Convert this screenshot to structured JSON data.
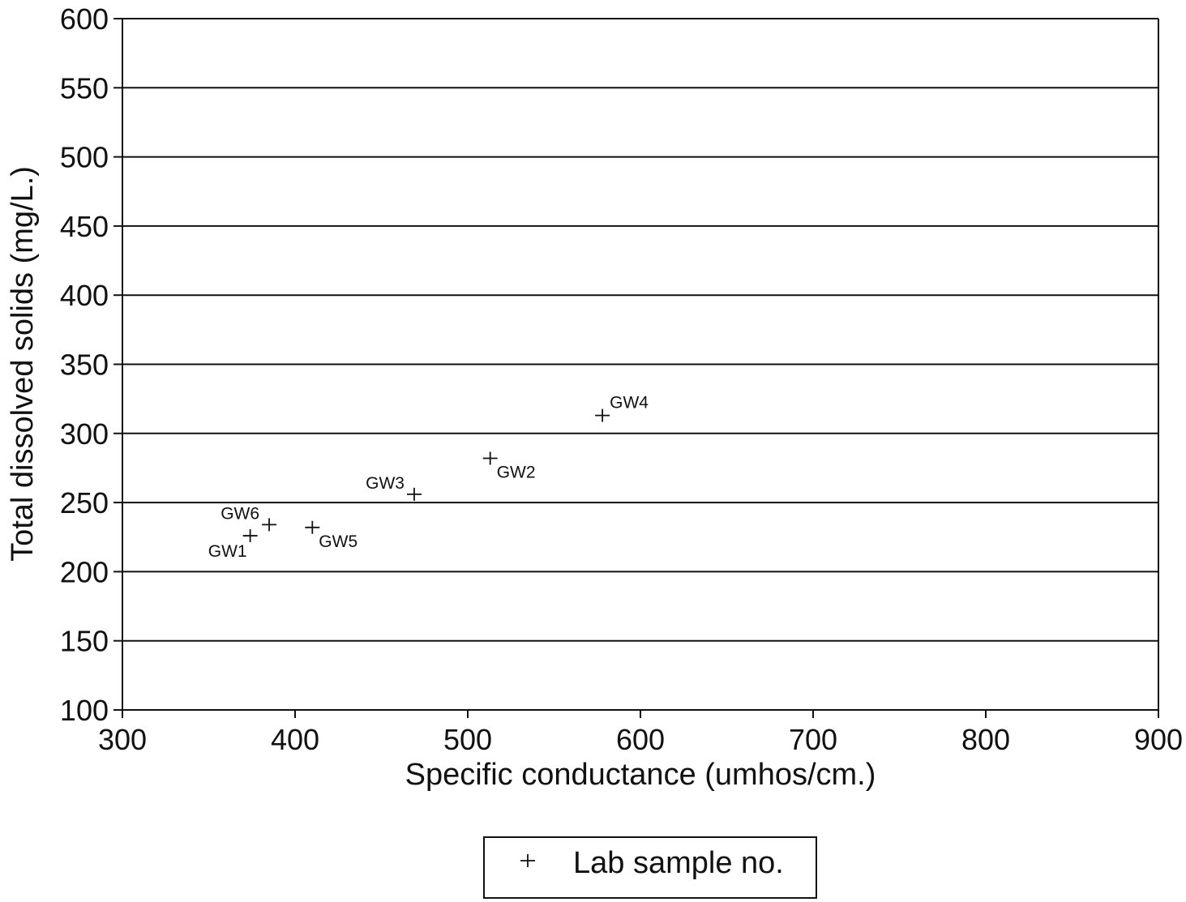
{
  "chart_data": {
    "type": "scatter",
    "xlabel": "Specific conductance (umhos/cm.)",
    "ylabel": "Total dissolved solids (mg/L.)",
    "xlim": [
      300,
      900
    ],
    "ylim": [
      100,
      600
    ],
    "xticks": [
      300,
      400,
      500,
      600,
      700,
      800,
      900
    ],
    "yticks": [
      100,
      150,
      200,
      250,
      300,
      350,
      400,
      450,
      500,
      550,
      600
    ],
    "grid": {
      "horizontal": true,
      "vertical": false
    },
    "legend": "bottom",
    "series": [
      {
        "name": "Lab sample no.",
        "marker": "plus",
        "points": [
          {
            "label": "GW1",
            "x": 374,
            "y": 226
          },
          {
            "label": "GW2",
            "x": 513,
            "y": 282
          },
          {
            "label": "GW3",
            "x": 469,
            "y": 256
          },
          {
            "label": "GW4",
            "x": 578,
            "y": 313
          },
          {
            "label": "GW5",
            "x": 410,
            "y": 232
          },
          {
            "label": "GW6",
            "x": 385,
            "y": 234
          }
        ]
      }
    ]
  }
}
